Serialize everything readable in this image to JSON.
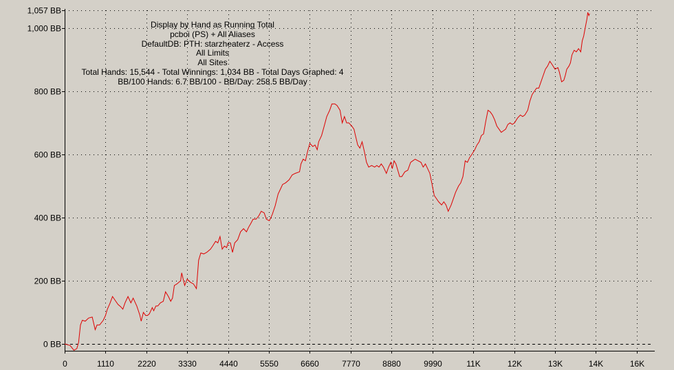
{
  "chart_data": {
    "type": "line",
    "info_lines": [
      "Display by Hand as Running Total",
      "pcboi (PS) + All Aliases",
      "DefaultDB: PTH: starzheaterz - Access",
      "All Limits",
      "All Sites",
      "Total Hands: 15,544 - Total Winnings: 1,034 BB - Total Days Graphed: 4",
      "BB/100 Hands: 6.7 BB/100 - BB/Day: 258.5 BB/Day"
    ],
    "xlim": [
      0,
      16000
    ],
    "ylim": [
      -25,
      1057
    ],
    "x_ticks": [
      {
        "value": 0,
        "label": "0"
      },
      {
        "value": 1110,
        "label": "1110"
      },
      {
        "value": 2220,
        "label": "2220"
      },
      {
        "value": 3330,
        "label": "3330"
      },
      {
        "value": 4440,
        "label": "4440"
      },
      {
        "value": 5550,
        "label": "5550"
      },
      {
        "value": 6660,
        "label": "6660"
      },
      {
        "value": 7770,
        "label": "7770"
      },
      {
        "value": 8880,
        "label": "8880"
      },
      {
        "value": 9990,
        "label": "9990"
      },
      {
        "value": 11100,
        "label": "11K"
      },
      {
        "value": 12210,
        "label": "12K"
      },
      {
        "value": 13320,
        "label": "13K"
      },
      {
        "value": 14430,
        "label": "14K"
      },
      {
        "value": 15540,
        "label": "16K"
      }
    ],
    "y_ticks": [
      {
        "value": 0,
        "label": "0 BB"
      },
      {
        "value": 200,
        "label": "200 BB"
      },
      {
        "value": 400,
        "label": "400 BB"
      },
      {
        "value": 600,
        "label": "600 BB"
      },
      {
        "value": 800,
        "label": "800 BB"
      },
      {
        "value": 1000,
        "label": "1,000 BB"
      },
      {
        "value": 1057,
        "label": "1,057 BB"
      }
    ],
    "grid": true,
    "colors": {
      "line": "#dd0000",
      "grid": "#000000",
      "background": "#d4d0c8"
    },
    "series": [
      {
        "points": [
          [
            0,
            0
          ],
          [
            150,
            -5
          ],
          [
            250,
            -20
          ],
          [
            330,
            -15
          ],
          [
            380,
            5
          ],
          [
            430,
            60
          ],
          [
            480,
            75
          ],
          [
            560,
            72
          ],
          [
            650,
            82
          ],
          [
            750,
            85
          ],
          [
            830,
            45
          ],
          [
            880,
            60
          ],
          [
            950,
            60
          ],
          [
            1050,
            75
          ],
          [
            1110,
            90
          ],
          [
            1160,
            110
          ],
          [
            1230,
            128
          ],
          [
            1300,
            150
          ],
          [
            1360,
            140
          ],
          [
            1450,
            125
          ],
          [
            1520,
            118
          ],
          [
            1580,
            110
          ],
          [
            1640,
            130
          ],
          [
            1720,
            150
          ],
          [
            1800,
            130
          ],
          [
            1860,
            145
          ],
          [
            1960,
            120
          ],
          [
            2040,
            92
          ],
          [
            2080,
            72
          ],
          [
            2140,
            100
          ],
          [
            2200,
            90
          ],
          [
            2250,
            90
          ],
          [
            2300,
            95
          ],
          [
            2380,
            115
          ],
          [
            2420,
            105
          ],
          [
            2480,
            120
          ],
          [
            2530,
            120
          ],
          [
            2600,
            130
          ],
          [
            2680,
            135
          ],
          [
            2740,
            165
          ],
          [
            2820,
            150
          ],
          [
            2880,
            135
          ],
          [
            2930,
            145
          ],
          [
            2980,
            185
          ],
          [
            3050,
            190
          ],
          [
            3150,
            200
          ],
          [
            3180,
            225
          ],
          [
            3260,
            185
          ],
          [
            3330,
            205
          ],
          [
            3420,
            195
          ],
          [
            3500,
            190
          ],
          [
            3580,
            175
          ],
          [
            3640,
            265
          ],
          [
            3700,
            288
          ],
          [
            3780,
            285
          ],
          [
            3860,
            290
          ],
          [
            3960,
            300
          ],
          [
            4020,
            310
          ],
          [
            4100,
            325
          ],
          [
            4160,
            320
          ],
          [
            4220,
            340
          ],
          [
            4280,
            300
          ],
          [
            4340,
            310
          ],
          [
            4400,
            305
          ],
          [
            4440,
            320
          ],
          [
            4500,
            320
          ],
          [
            4560,
            290
          ],
          [
            4620,
            320
          ],
          [
            4700,
            330
          ],
          [
            4780,
            355
          ],
          [
            4860,
            365
          ],
          [
            4940,
            355
          ],
          [
            5000,
            370
          ],
          [
            5050,
            380
          ],
          [
            5120,
            395
          ],
          [
            5200,
            395
          ],
          [
            5270,
            405
          ],
          [
            5340,
            420
          ],
          [
            5420,
            415
          ],
          [
            5480,
            395
          ],
          [
            5560,
            390
          ],
          [
            5640,
            410
          ],
          [
            5720,
            438
          ],
          [
            5800,
            475
          ],
          [
            5860,
            490
          ],
          [
            5920,
            505
          ],
          [
            6000,
            510
          ],
          [
            6100,
            520
          ],
          [
            6180,
            535
          ],
          [
            6260,
            540
          ],
          [
            6380,
            545
          ],
          [
            6420,
            570
          ],
          [
            6480,
            585
          ],
          [
            6540,
            580
          ],
          [
            6600,
            610
          ],
          [
            6660,
            635
          ],
          [
            6740,
            625
          ],
          [
            6800,
            630
          ],
          [
            6860,
            615
          ],
          [
            6900,
            640
          ],
          [
            6980,
            660
          ],
          [
            7050,
            690
          ],
          [
            7120,
            720
          ],
          [
            7200,
            740
          ],
          [
            7260,
            760
          ],
          [
            7340,
            760
          ],
          [
            7400,
            755
          ],
          [
            7480,
            740
          ],
          [
            7540,
            700
          ],
          [
            7600,
            720
          ],
          [
            7660,
            700
          ],
          [
            7720,
            700
          ],
          [
            7800,
            690
          ],
          [
            7860,
            680
          ],
          [
            7900,
            660
          ],
          [
            7960,
            630
          ],
          [
            8020,
            620
          ],
          [
            8080,
            640
          ],
          [
            8140,
            610
          ],
          [
            8200,
            575
          ],
          [
            8260,
            560
          ],
          [
            8340,
            565
          ],
          [
            8420,
            560
          ],
          [
            8480,
            565
          ],
          [
            8540,
            560
          ],
          [
            8600,
            570
          ],
          [
            8660,
            560
          ],
          [
            8740,
            540
          ],
          [
            8800,
            560
          ],
          [
            8860,
            575
          ],
          [
            8900,
            555
          ],
          [
            8950,
            580
          ],
          [
            9000,
            570
          ],
          [
            9050,
            550
          ],
          [
            9100,
            530
          ],
          [
            9160,
            530
          ],
          [
            9240,
            545
          ],
          [
            9320,
            550
          ],
          [
            9400,
            575
          ],
          [
            9460,
            580
          ],
          [
            9520,
            585
          ],
          [
            9600,
            580
          ],
          [
            9680,
            575
          ],
          [
            9740,
            560
          ],
          [
            9800,
            570
          ],
          [
            9860,
            555
          ],
          [
            9920,
            540
          ],
          [
            9990,
            500
          ],
          [
            10040,
            470
          ],
          [
            10100,
            460
          ],
          [
            10160,
            450
          ],
          [
            10240,
            440
          ],
          [
            10300,
            450
          ],
          [
            10360,
            440
          ],
          [
            10420,
            420
          ],
          [
            10500,
            440
          ],
          [
            10560,
            460
          ],
          [
            10620,
            480
          ],
          [
            10700,
            500
          ],
          [
            10760,
            510
          ],
          [
            10820,
            530
          ],
          [
            10880,
            580
          ],
          [
            10940,
            575
          ],
          [
            11000,
            590
          ],
          [
            11060,
            600
          ],
          [
            11140,
            615
          ],
          [
            11200,
            630
          ],
          [
            11260,
            640
          ],
          [
            11320,
            660
          ],
          [
            11380,
            665
          ],
          [
            11440,
            705
          ],
          [
            11500,
            740
          ],
          [
            11560,
            735
          ],
          [
            11620,
            725
          ],
          [
            11680,
            710
          ],
          [
            11740,
            690
          ],
          [
            11800,
            680
          ],
          [
            11860,
            670
          ],
          [
            11920,
            675
          ],
          [
            11980,
            680
          ],
          [
            12040,
            695
          ],
          [
            12100,
            700
          ],
          [
            12160,
            695
          ],
          [
            12220,
            700
          ],
          [
            12300,
            715
          ],
          [
            12380,
            725
          ],
          [
            12440,
            720
          ],
          [
            12500,
            725
          ],
          [
            12580,
            740
          ],
          [
            12640,
            770
          ],
          [
            12700,
            790
          ],
          [
            12760,
            800
          ],
          [
            12820,
            810
          ],
          [
            12880,
            810
          ],
          [
            12940,
            830
          ],
          [
            13000,
            850
          ],
          [
            13060,
            870
          ],
          [
            13120,
            880
          ],
          [
            13180,
            895
          ],
          [
            13240,
            885
          ],
          [
            13320,
            870
          ],
          [
            13400,
            875
          ],
          [
            13440,
            860
          ],
          [
            13500,
            830
          ],
          [
            13560,
            835
          ],
          [
            13600,
            850
          ],
          [
            13640,
            870
          ],
          [
            13700,
            880
          ],
          [
            13740,
            890
          ],
          [
            13780,
            915
          ],
          [
            13840,
            930
          ],
          [
            13900,
            925
          ],
          [
            13960,
            935
          ],
          [
            14020,
            925
          ],
          [
            14060,
            960
          ],
          [
            14100,
            975
          ],
          [
            14140,
            1000
          ],
          [
            14190,
            1030
          ],
          [
            14210,
            1050
          ],
          [
            14240,
            1040
          ],
          [
            14260,
            1046
          ]
        ]
      }
    ]
  }
}
